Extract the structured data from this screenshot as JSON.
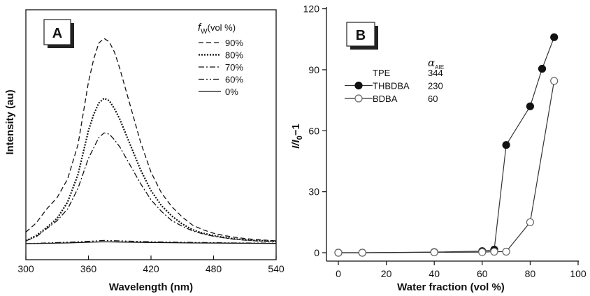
{
  "chart_data": [
    {
      "type": "line",
      "panel_label": "A",
      "xlabel": "Wavelength (nm)",
      "ylabel": "Intensity (au)",
      "xlim": [
        300,
        540
      ],
      "ylim": [
        0,
        1
      ],
      "x_ticks": [
        300,
        360,
        420,
        480,
        540
      ],
      "legend_title_main": "f",
      "legend_title_sub": "W",
      "legend_title_rest": "(vol %)",
      "legend_position": "top-right",
      "series": [
        {
          "name": "90%",
          "dash": "dashed",
          "x": [
            300,
            310,
            320,
            330,
            340,
            350,
            360,
            365,
            370,
            375,
            380,
            385,
            390,
            400,
            410,
            420,
            430,
            440,
            450,
            460,
            470,
            480,
            490,
            500,
            510,
            520,
            530,
            540
          ],
          "y": [
            0.05,
            0.09,
            0.15,
            0.2,
            0.28,
            0.43,
            0.7,
            0.8,
            0.87,
            0.89,
            0.875,
            0.83,
            0.76,
            0.6,
            0.44,
            0.31,
            0.22,
            0.16,
            0.115,
            0.08,
            0.06,
            0.045,
            0.035,
            0.028,
            0.022,
            0.018,
            0.015,
            0.012
          ]
        },
        {
          "name": "80%",
          "dash": "dotted",
          "x": [
            300,
            310,
            320,
            330,
            340,
            350,
            360,
            365,
            370,
            375,
            380,
            385,
            390,
            400,
            410,
            420,
            430,
            440,
            450,
            460,
            470,
            480,
            490,
            500,
            510,
            520,
            530,
            540
          ],
          "y": [
            0.012,
            0.035,
            0.07,
            0.11,
            0.18,
            0.3,
            0.49,
            0.56,
            0.61,
            0.63,
            0.62,
            0.585,
            0.54,
            0.43,
            0.32,
            0.23,
            0.165,
            0.12,
            0.085,
            0.06,
            0.045,
            0.035,
            0.027,
            0.021,
            0.017,
            0.014,
            0.012,
            0.01
          ]
        },
        {
          "name": "70%",
          "dash": "dashdot",
          "x": [
            300,
            310,
            320,
            330,
            340,
            350,
            360,
            370,
            375,
            380,
            385,
            390,
            400,
            410,
            420,
            430,
            440,
            450,
            460,
            470,
            480,
            490,
            500,
            510,
            520,
            530,
            540
          ],
          "y": [
            0.012,
            0.03,
            0.065,
            0.1,
            0.15,
            0.24,
            0.37,
            0.46,
            0.48,
            0.475,
            0.45,
            0.42,
            0.34,
            0.26,
            0.19,
            0.14,
            0.1,
            0.075,
            0.055,
            0.042,
            0.032,
            0.025,
            0.019,
            0.015,
            0.012,
            0.01,
            0.009
          ]
        },
        {
          "name": "60%",
          "dash": "dashdotdot",
          "x": [
            300,
            340,
            360,
            375,
            390,
            420,
            460,
            500,
            540
          ],
          "y": [
            0.0,
            0.006,
            0.01,
            0.014,
            0.012,
            0.008,
            0.005,
            0.003,
            0.002
          ]
        },
        {
          "name": "0%",
          "dash": "solid",
          "x": [
            300,
            340,
            360,
            375,
            390,
            420,
            460,
            500,
            540
          ],
          "y": [
            0.0,
            0.003,
            0.006,
            0.008,
            0.007,
            0.005,
            0.003,
            0.002,
            0.001
          ]
        }
      ]
    },
    {
      "type": "line",
      "panel_label": "B",
      "xlabel": "Water fraction  (vol %)",
      "ylabel_main": "I/I",
      "ylabel_sub": "0",
      "ylabel_rest": "−1",
      "xlim": [
        -5,
        100
      ],
      "ylim": [
        -5,
        120
      ],
      "x_ticks": [
        0,
        20,
        40,
        60,
        80,
        100
      ],
      "y_ticks": [
        0,
        30,
        60,
        90,
        120
      ],
      "legend_header_main": "α",
      "legend_header_sub": "AIE",
      "legend_position": "top-left",
      "legend_rows": [
        {
          "name": "TPE",
          "value": "344",
          "marker": "none"
        },
        {
          "name": "THBDBA",
          "value": "230",
          "marker": "filled"
        },
        {
          "name": "BDBA",
          "value": "60",
          "marker": "open"
        }
      ],
      "series": [
        {
          "name": "THBDBA",
          "marker": "filled",
          "x": [
            0,
            10,
            40,
            60,
            65,
            70,
            80,
            85,
            90
          ],
          "y": [
            0,
            0,
            0.3,
            0.8,
            1.5,
            53,
            72,
            90.5,
            106
          ]
        },
        {
          "name": "BDBA",
          "marker": "open",
          "x": [
            0,
            10,
            40,
            60,
            65,
            70,
            80,
            90
          ],
          "y": [
            0,
            0,
            0.2,
            0.3,
            0.5,
            0.5,
            15,
            84.5
          ]
        }
      ]
    }
  ]
}
